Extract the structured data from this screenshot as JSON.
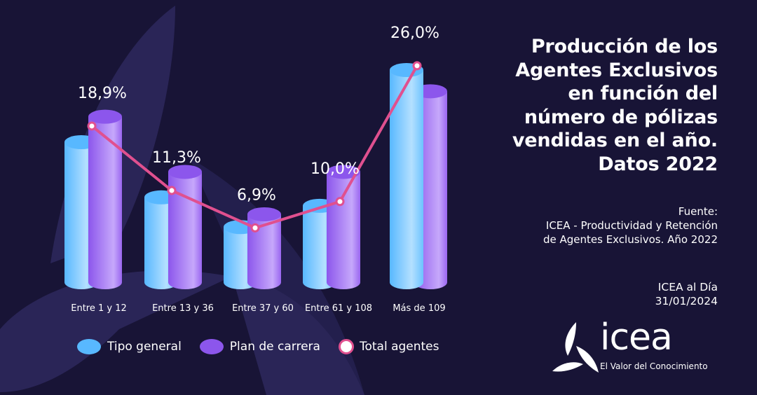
{
  "title_lines": [
    "Producción de los",
    "Agentes Exclusivos",
    "en función del",
    "número de pólizas",
    "vendidas en el año.",
    "Datos 2022"
  ],
  "source": {
    "label": "Fuente:",
    "lines": [
      "ICEA - Productividad y Retención",
      "de Agentes Exclusivos. Año 2022"
    ]
  },
  "edition": {
    "name": "ICEA al Día",
    "date": "31/01/2024"
  },
  "logo": {
    "word": "icea",
    "tagline": "El Valor del Conocimiento",
    "icon": "leaf-triskelion-icon"
  },
  "colors": {
    "background": "#181436",
    "tipo_general": "#58b8ff",
    "plan_carrera": "#8c56ec",
    "total_line": "#e0508f"
  },
  "chart_data": {
    "type": "bar",
    "subtype": "3d-cylinder-bar-with-line",
    "title": "Producción de los Agentes Exclusivos en función del número de pólizas vendidas en el año. Datos 2022",
    "categories": [
      "Entre 1 y 12",
      "Entre 13 y 36",
      "Entre 37 y 60",
      "Entre 61 y 108",
      "Más de 109"
    ],
    "series": [
      {
        "name": "Tipo general",
        "kind": "bar",
        "values": [
          16.5,
          10.0,
          6.5,
          9.0,
          25.0
        ],
        "approximate": true
      },
      {
        "name": "Plan de carrera",
        "kind": "bar",
        "values": [
          19.5,
          13.0,
          8.0,
          13.0,
          22.5
        ],
        "approximate": true
      },
      {
        "name": "Total agentes",
        "kind": "line",
        "values": [
          18.9,
          11.3,
          6.9,
          10.0,
          26.0
        ]
      }
    ],
    "data_labels": [
      "18,9%",
      "11,3%",
      "6,9%",
      "10,0%",
      "26,0%"
    ],
    "xlabel": "",
    "ylabel": "",
    "ylim": [
      0,
      30
    ],
    "grid": false,
    "legend": "bottom"
  }
}
